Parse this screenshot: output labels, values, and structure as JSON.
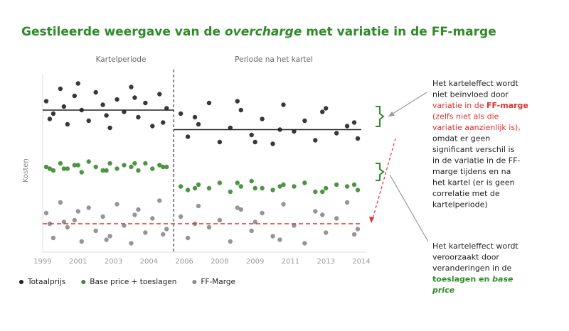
{
  "chart_data": {
    "type": "scatter",
    "title_parts": [
      {
        "text": "Gestileerde weergave van de "
      },
      {
        "text": "overcharge",
        "italic": true
      },
      {
        "text": " met variatie in de FF-marge"
      }
    ],
    "title_color": "#2f8a2a",
    "period_labels": [
      "Kartelperiode",
      "Periode na het kartel"
    ],
    "y_label": "Kosten",
    "categories": [
      "1999",
      "2001",
      "2003",
      "2004",
      "2006",
      "2008",
      "2009",
      "2011",
      "2013",
      "2014"
    ],
    "xlim": [
      0,
      9
    ],
    "ylim": [
      0,
      100
    ],
    "divider": 3.7,
    "series": [
      {
        "name": "Totaalprijs",
        "color": "#222222",
        "x": [
          0.1,
          0.3,
          0.5,
          0.7,
          0.9,
          1.1,
          1.3,
          1.5,
          1.7,
          1.9,
          2.1,
          2.3,
          2.5,
          2.7,
          2.9,
          3.1,
          3.3,
          3.5,
          0.2,
          1.0,
          1.8,
          2.6,
          3.4,
          0.6,
          3.9,
          4.1,
          4.4,
          4.7,
          5.0,
          5.3,
          5.6,
          5.9,
          6.2,
          6.5,
          6.8,
          7.1,
          7.4,
          7.7,
          8.0,
          8.3,
          8.6,
          8.9,
          4.3,
          5.5,
          6.7,
          7.9,
          8.8,
          6.0
        ],
        "values": [
          85,
          78,
          92,
          72,
          88,
          80,
          74,
          90,
          83,
          70,
          86,
          79,
          93,
          76,
          84,
          71,
          89,
          81,
          75,
          95,
          77,
          87,
          73,
          82,
          78,
          65,
          72,
          84,
          62,
          70,
          80,
          66,
          75,
          61,
          83,
          68,
          74,
          63,
          81,
          67,
          71,
          64,
          76,
          85,
          69,
          79,
          73,
          62
        ],
        "averages": [
          {
            "from": 0,
            "to": 3.7,
            "value": 80
          },
          {
            "from": 3.7,
            "to": 9,
            "value": 69
          }
        ],
        "average_color": "#222222",
        "average_dashed": false
      },
      {
        "name": "Base price + toeslagen",
        "color": "#3a8a2e",
        "x": [
          0.1,
          0.3,
          0.5,
          0.7,
          0.9,
          1.1,
          1.3,
          1.5,
          1.7,
          1.9,
          2.1,
          2.3,
          2.5,
          2.7,
          2.9,
          3.1,
          3.3,
          3.5,
          0.2,
          1.0,
          1.8,
          2.6,
          3.4,
          0.6,
          3.9,
          4.1,
          4.4,
          4.7,
          5.0,
          5.3,
          5.6,
          5.9,
          6.2,
          6.5,
          6.8,
          7.1,
          7.4,
          7.7,
          8.0,
          8.3,
          8.6,
          8.9,
          4.3,
          5.5,
          6.7,
          7.9,
          8.8,
          6.0
        ],
        "values": [
          48,
          46,
          50,
          47,
          49,
          45,
          51,
          48,
          46,
          50,
          47,
          49,
          48,
          46,
          50,
          47,
          49,
          48,
          47,
          49,
          46,
          50,
          48,
          47,
          37,
          35,
          38,
          36,
          39,
          34,
          37,
          40,
          36,
          35,
          38,
          37,
          39,
          34,
          36,
          38,
          37,
          35,
          36,
          39,
          37,
          34,
          38,
          36
        ]
      },
      {
        "name": "FF-Marge",
        "color": "#8a8a8a",
        "x": [
          0.1,
          0.3,
          0.5,
          0.7,
          0.9,
          1.1,
          1.3,
          1.5,
          1.7,
          1.9,
          2.1,
          2.3,
          2.5,
          2.7,
          2.9,
          3.1,
          3.3,
          3.5,
          0.2,
          1.0,
          1.8,
          2.6,
          3.4,
          0.6,
          3.9,
          4.1,
          4.4,
          4.7,
          5.0,
          5.3,
          5.6,
          5.9,
          6.2,
          6.5,
          6.8,
          7.1,
          7.4,
          7.7,
          8.0,
          8.3,
          8.6,
          8.9,
          4.3,
          5.5,
          6.7,
          7.9,
          8.8,
          6.0
        ],
        "values": [
          22,
          8,
          28,
          14,
          18,
          6,
          25,
          12,
          20,
          9,
          27,
          15,
          5,
          24,
          11,
          19,
          29,
          13,
          16,
          23,
          7,
          21,
          10,
          17,
          20,
          8,
          26,
          14,
          18,
          6,
          24,
          12,
          22,
          9,
          27,
          15,
          5,
          23,
          11,
          19,
          28,
          13,
          16,
          25,
          7,
          21,
          10,
          17
        ],
        "averages": [
          {
            "from": 0,
            "to": 9,
            "value": 16
          }
        ],
        "average_color": "#e03030",
        "average_dashed": true
      }
    ],
    "annotations": [
      {
        "lines": [
          [
            {
              "text": "Het karteleffect wordt"
            }
          ],
          [
            {
              "text": "niet beïnvloed door"
            }
          ],
          [
            {
              "text": "variatie in de ",
              "color": "#e03030"
            },
            {
              "text": "FF-marge",
              "color": "#e03030",
              "bold": true
            }
          ],
          [
            {
              "text": "(zelfs niet als die",
              "color": "#e03030"
            }
          ],
          [
            {
              "text": "variatie aanzienlijk is),",
              "color": "#e03030"
            }
          ],
          [
            {
              "text": "omdat er geen"
            }
          ],
          [
            {
              "text": "significant verschil is"
            }
          ],
          [
            {
              "text": "in de variatie in de FF-"
            }
          ],
          [
            {
              "text": "marge tijdens en na"
            }
          ],
          [
            {
              "text": "het kartel (er is geen"
            }
          ],
          [
            {
              "text": "correlatie met de"
            }
          ],
          [
            {
              "text": "kartelperiode)"
            }
          ]
        ]
      },
      {
        "lines": [
          [
            {
              "text": "Het karteleffect wordt"
            }
          ],
          [
            {
              "text": "veroorzaakt door"
            }
          ],
          [
            {
              "text": "veranderingen in de"
            }
          ],
          [
            {
              "text": "toeslagen en ",
              "color": "#2f8a2a",
              "bold": true
            },
            {
              "text": "base",
              "color": "#2f8a2a",
              "bold": true,
              "italic": true
            }
          ],
          [
            {
              "text": "price",
              "color": "#2f8a2a",
              "bold": true,
              "italic": true
            }
          ]
        ]
      }
    ]
  }
}
